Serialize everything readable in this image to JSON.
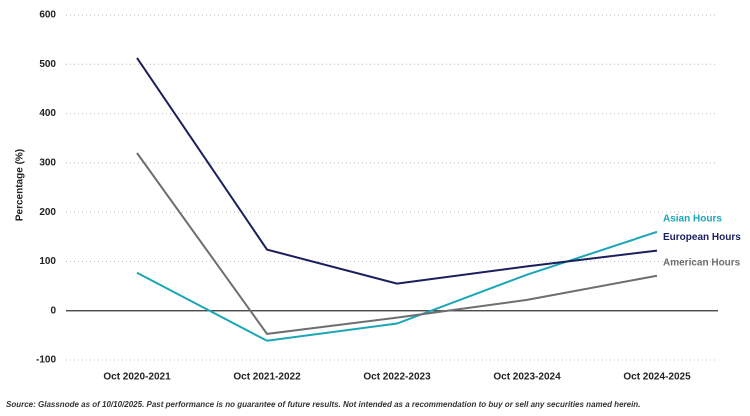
{
  "chart_data": {
    "type": "line",
    "y_label": "Percentage (%)",
    "categories": [
      "Oct 2020-2021",
      "Oct 2021-2022",
      "Oct 2022-2023",
      "Oct 2023-2024",
      "Oct 2024-2025"
    ],
    "series": [
      {
        "name": "Asian Hours",
        "color": "#1aa6b7",
        "values": [
          77,
          -61,
          -26,
          73,
          160
        ]
      },
      {
        "name": "European Hours",
        "color": "#1b1f5e",
        "values": [
          513,
          124,
          55,
          90,
          122
        ]
      },
      {
        "name": "American Hours",
        "color": "#6d6e71",
        "values": [
          320,
          -47,
          -14,
          22,
          71
        ]
      }
    ],
    "ylim": [
      -100,
      600
    ],
    "yticks": [
      -100,
      0,
      100,
      200,
      300,
      400,
      500,
      600
    ],
    "grid": true,
    "source": "Source: Glassnode as of 10/10/2025. Past performance is no guarantee of future results. Not intended as a recommendation to buy or sell any securities named herein."
  }
}
